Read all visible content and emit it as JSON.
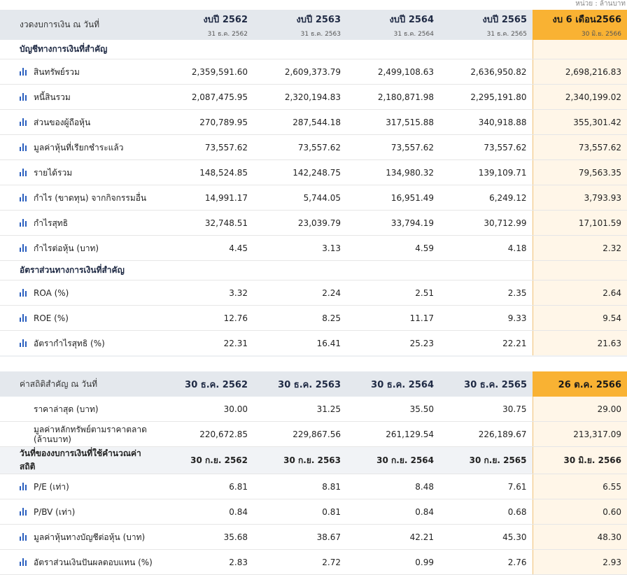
{
  "unit_label": "หน่วย : ล้านบาท",
  "table1": {
    "header_label": "งวดงบการเงิน ณ วันที่",
    "columns": [
      {
        "title": "งบปี 2562",
        "date": "31 ธ.ค. 2562"
      },
      {
        "title": "งบปี 2563",
        "date": "31 ธ.ค. 2563"
      },
      {
        "title": "งบปี 2564",
        "date": "31 ธ.ค. 2564"
      },
      {
        "title": "งบปี 2565",
        "date": "31 ธ.ค. 2565"
      },
      {
        "title": "งบ 6 เดือน2566",
        "date": "30 มิ.ย. 2566"
      }
    ],
    "section1": "บัญชีทางการเงินที่สำคัญ",
    "rows1": [
      {
        "label": "สินทรัพย์รวม",
        "values": [
          "2,359,591.60",
          "2,609,373.79",
          "2,499,108.63",
          "2,636,950.82",
          "2,698,216.83"
        ]
      },
      {
        "label": "หนี้สินรวม",
        "values": [
          "2,087,475.95",
          "2,320,194.83",
          "2,180,871.98",
          "2,295,191.80",
          "2,340,199.02"
        ]
      },
      {
        "label": "ส่วนของผู้ถือหุ้น",
        "values": [
          "270,789.95",
          "287,544.18",
          "317,515.88",
          "340,918.88",
          "355,301.42"
        ]
      },
      {
        "label": "มูลค่าหุ้นที่เรียกชำระแล้ว",
        "values": [
          "73,557.62",
          "73,557.62",
          "73,557.62",
          "73,557.62",
          "73,557.62"
        ]
      },
      {
        "label": "รายได้รวม",
        "values": [
          "148,524.85",
          "142,248.75",
          "134,980.32",
          "139,109.71",
          "79,563.35"
        ]
      },
      {
        "label": "กำไร (ขาดทุน) จากกิจกรรมอื่น",
        "values": [
          "14,991.17",
          "5,744.05",
          "16,951.49",
          "6,249.12",
          "3,793.93"
        ]
      },
      {
        "label": "กำไรสุทธิ",
        "values": [
          "32,748.51",
          "23,039.79",
          "33,794.19",
          "30,712.99",
          "17,101.59"
        ]
      },
      {
        "label": "กำไรต่อหุ้น (บาท)",
        "values": [
          "4.45",
          "3.13",
          "4.59",
          "4.18",
          "2.32"
        ]
      }
    ],
    "section2": "อัตราส่วนทางการเงินที่สำคัญ",
    "rows2": [
      {
        "label": "ROA (%)",
        "values": [
          "3.32",
          "2.24",
          "2.51",
          "2.35",
          "2.64"
        ]
      },
      {
        "label": "ROE (%)",
        "values": [
          "12.76",
          "8.25",
          "11.17",
          "9.33",
          "9.54"
        ]
      },
      {
        "label": "อัตรากำไรสุทธิ (%)",
        "values": [
          "22.31",
          "16.41",
          "25.23",
          "22.21",
          "21.63"
        ]
      }
    ]
  },
  "table2": {
    "header_label": "ค่าสถิติสำคัญ ณ วันที่",
    "columns": [
      "30 ธ.ค. 2562",
      "30 ธ.ค. 2563",
      "30 ธ.ค. 2564",
      "30 ธ.ค. 2565",
      "26 ต.ค. 2566"
    ],
    "rows1": [
      {
        "label": "ราคาล่าสุด (บาท)",
        "values": [
          "30.00",
          "31.25",
          "35.50",
          "30.75",
          "29.00"
        ]
      },
      {
        "label": "มูลค่าหลักทรัพย์ตามราคาตลาด (ล้านบาท)",
        "values": [
          "220,672.85",
          "229,867.56",
          "261,129.54",
          "226,189.67",
          "213,317.09"
        ]
      }
    ],
    "section": {
      "label": "วันที่ของงบการเงินที่ใช้คำนวณค่าสถิติ",
      "values": [
        "30 ก.ย. 2562",
        "30 ก.ย. 2563",
        "30 ก.ย. 2564",
        "30 ก.ย. 2565",
        "30 มิ.ย. 2566"
      ]
    },
    "rows2": [
      {
        "label": "P/E (เท่า)",
        "values": [
          "6.81",
          "8.81",
          "8.48",
          "7.61",
          "6.55"
        ]
      },
      {
        "label": "P/BV (เท่า)",
        "values": [
          "0.84",
          "0.81",
          "0.84",
          "0.68",
          "0.60"
        ]
      },
      {
        "label": "มูลค่าหุ้นทางบัญชีต่อหุ้น (บาท)",
        "values": [
          "35.68",
          "38.67",
          "42.21",
          "45.30",
          "48.30"
        ]
      },
      {
        "label": "อัตราส่วนเงินปันผลตอบแทน (%)",
        "values": [
          "2.83",
          "2.72",
          "0.99",
          "2.76",
          "2.93"
        ]
      }
    ]
  },
  "colors": {
    "header_bg": "#e4e8ed",
    "highlight": "#f9b233",
    "highlight_col": "#fff6e8",
    "icon": "#2a5fbf"
  },
  "icons": {
    "row_chart": "bar-chart-icon"
  }
}
